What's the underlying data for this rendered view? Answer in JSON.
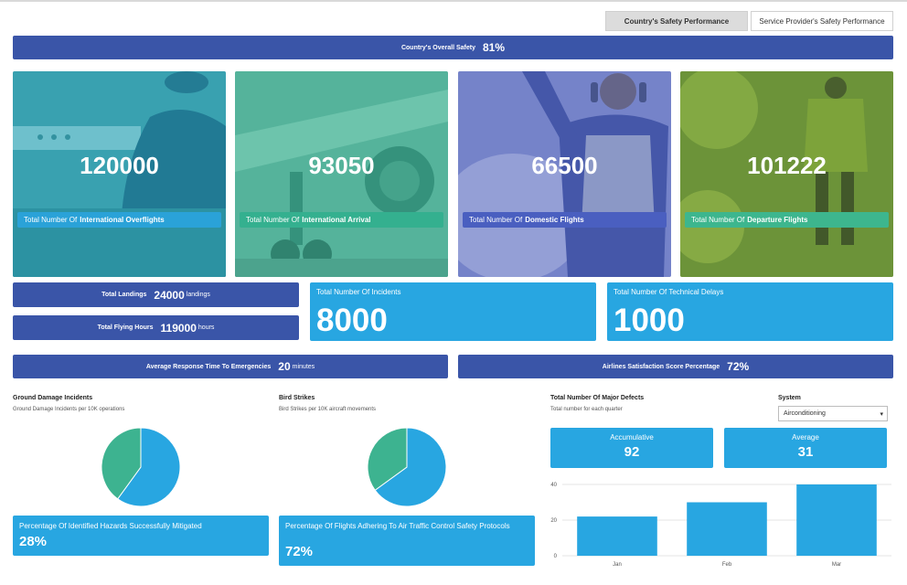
{
  "tabs": [
    {
      "label": "Country's Safety Performance",
      "active": true
    },
    {
      "label": "Service Provider's Safety Performance",
      "active": false
    }
  ],
  "overall": {
    "label": "Country's Overall Safety",
    "value": "81%"
  },
  "cards": [
    {
      "value": "120000",
      "prefix": "Total Number Of",
      "bold": "International Overflights",
      "tint": "#1fa3b6",
      "pill": "#2aa2d8"
    },
    {
      "value": "93050",
      "prefix": "Total Number Of",
      "bold": "International Arrival",
      "tint": "#3bb79a",
      "pill": "#34b08f"
    },
    {
      "value": "66500",
      "prefix": "Total Number Of",
      "bold": "Domestic Flights",
      "tint": "#5f6fc4",
      "pill": "#4a5fc0"
    },
    {
      "value": "101222",
      "prefix": "Total Number Of",
      "bold": "Departure Flights",
      "tint": "#5c8c33",
      "pill": "#3db68e"
    }
  ],
  "landings": {
    "label": "Total Landings",
    "value": "24000",
    "unit": "landings"
  },
  "flying_hours": {
    "label": "Total Flying Hours",
    "value": "119000",
    "unit": "hours"
  },
  "incidents": {
    "label": "Total Number Of Incidents",
    "value": "8000"
  },
  "delays": {
    "label": "Total Number Of Technical Delays",
    "value": "1000"
  },
  "response": {
    "label": "Average Response Time To Emergencies",
    "value": "20",
    "unit": "minutes"
  },
  "satisfaction": {
    "label": "Airlines Satisfaction Score Percentage",
    "value": "72%"
  },
  "ground": {
    "title": "Ground Damage Incidents",
    "subtitle": "Ground Damage Incidents per 10K operations",
    "pct_label": "Percentage Of Identified Hazards Successfully Mitigated",
    "pct_value": "28%"
  },
  "bird": {
    "title": "Bird Strikes",
    "subtitle": "Bird Strikes per 10K aircraft movements",
    "pct_label": "Percentage Of Flights Adhering To Air Traffic Control Safety Protocols",
    "pct_value": "72%"
  },
  "defects": {
    "title": "Total Number Of Major Defects",
    "subtitle": "Total number for each quarter",
    "system_label": "System",
    "system_value": "Airconditioning",
    "accum_label": "Accumulative",
    "accum_value": "92",
    "avg_label": "Average",
    "avg_value": "31"
  },
  "chart_data": [
    {
      "type": "pie",
      "slices": [
        {
          "value": 60,
          "color": "#28a6e1"
        },
        {
          "value": 40,
          "color": "#3db390"
        }
      ]
    },
    {
      "type": "pie",
      "slices": [
        {
          "value": 65,
          "color": "#28a6e1"
        },
        {
          "value": 35,
          "color": "#3db390"
        }
      ]
    },
    {
      "type": "bar",
      "categories": [
        "Jan",
        "Feb",
        "Mar"
      ],
      "values": [
        22,
        30,
        40
      ],
      "ylim": [
        0,
        40
      ],
      "yticks": [
        0,
        20,
        40
      ],
      "color": "#28a6e1",
      "grid": true
    }
  ]
}
